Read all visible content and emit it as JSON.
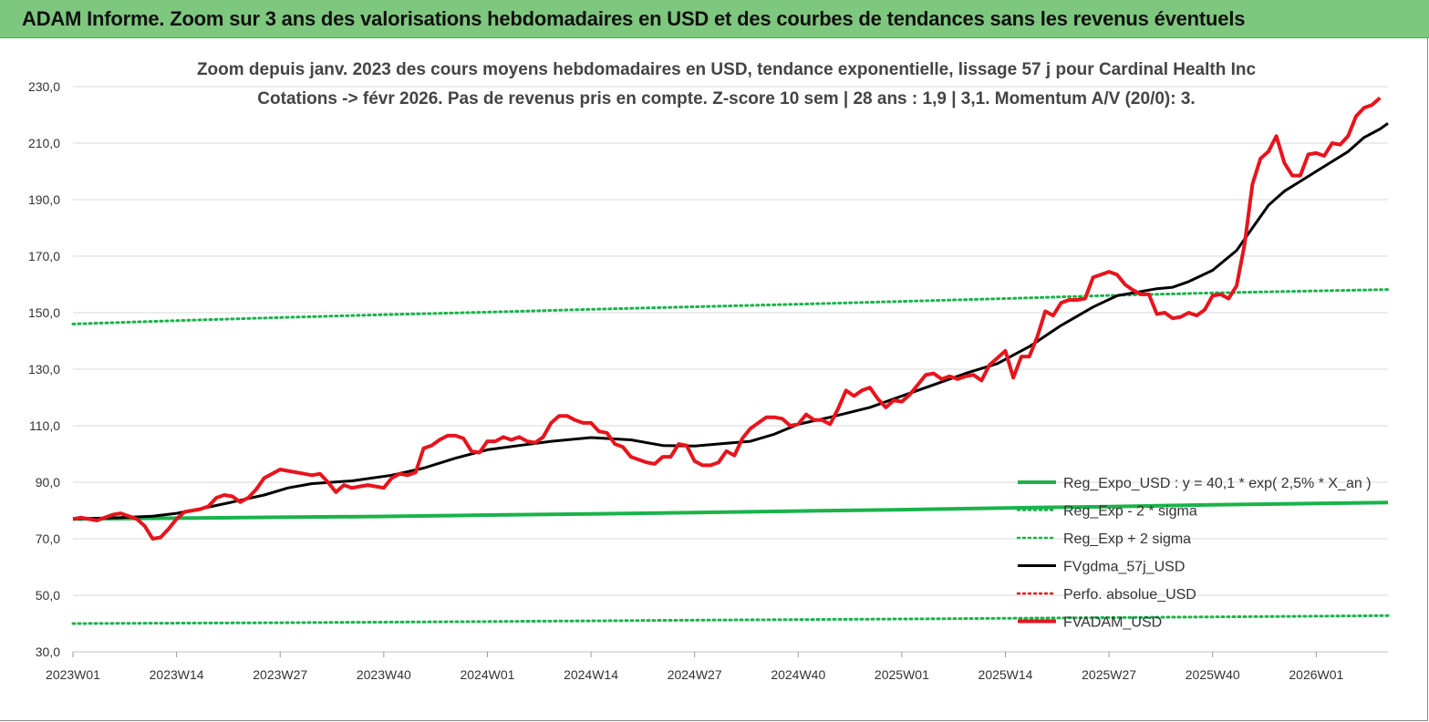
{
  "banner": {
    "title": "ADAM Informe. Zoom sur 3 ans des valorisations hebdomadaires en USD et des courbes de tendances sans les revenus éventuels"
  },
  "colors": {
    "banner": "#7ec77e",
    "price": "#e8141c",
    "smooth": "#000000",
    "regression": "#19b34a",
    "band": "#19b34a",
    "grid": "#d9d9d9"
  },
  "chart_data": {
    "type": "line",
    "title": "Zoom depuis janv. 2023 des cours moyens hebdomadaires en USD, tendance exponentielle, lissage 57 j pour Cardinal Health Inc",
    "subtitle": "Cotations -> févr 2026. Pas de revenus pris en compte. Z-score 10 sem | 28 ans : 1,9 | 3,1. Momentum A/V (20/0): 3.",
    "xlabel": "",
    "ylabel": "",
    "ylim": [
      30,
      230
    ],
    "y_ticks": [
      "30,0",
      "50,0",
      "70,0",
      "90,0",
      "110,0",
      "130,0",
      "150,0",
      "170,0",
      "190,0",
      "210,0",
      "230,0"
    ],
    "x_ticks": [
      "2023W01",
      "2023W14",
      "2023W27",
      "2023W40",
      "2024W01",
      "2024W14",
      "2024W27",
      "2024W40",
      "2025W01",
      "2025W14",
      "2025W27",
      "2025W40",
      "2026W01"
    ],
    "grid": "horizontal",
    "legend_position": "bottom-right",
    "legend": [
      "Reg_Expo_USD : y = 40,1 * exp( 2,5% *  X_an )",
      "Reg_Exp - 2 * sigma",
      "Reg_Exp + 2 sigma",
      "FVgdma_57j_USD",
      "Perfo. absolue_USD",
      "FVADAM_USD"
    ],
    "series": [
      {
        "name": "Reg_Expo_USD : y = 40,1 * exp( 2,5% *  X_an )",
        "style": "solid-thick",
        "color": "#19b34a",
        "points": [
          [
            0,
            77.0
          ],
          [
            13,
            77.3
          ],
          [
            26,
            77.6
          ],
          [
            39,
            77.9
          ],
          [
            52,
            78.4
          ],
          [
            65,
            78.8
          ],
          [
            78,
            79.3
          ],
          [
            91,
            79.8
          ],
          [
            104,
            80.3
          ],
          [
            117,
            80.9
          ],
          [
            130,
            81.4
          ],
          [
            143,
            82.0
          ],
          [
            156,
            82.5
          ],
          [
            165,
            82.8
          ]
        ]
      },
      {
        "name": "Reg_Exp - 2 * sigma",
        "style": "dotted",
        "color": "#19b34a",
        "points": [
          [
            0,
            40.0
          ],
          [
            26,
            40.3
          ],
          [
            52,
            40.7
          ],
          [
            78,
            41.2
          ],
          [
            104,
            41.6
          ],
          [
            130,
            42.1
          ],
          [
            156,
            42.6
          ],
          [
            165,
            42.8
          ]
        ]
      },
      {
        "name": "Reg_Exp + 2 sigma",
        "style": "dotted",
        "color": "#19b34a",
        "points": [
          [
            0,
            146.0
          ],
          [
            13,
            147.2
          ],
          [
            26,
            148.3
          ],
          [
            39,
            149.3
          ],
          [
            52,
            150.2
          ],
          [
            65,
            151.2
          ],
          [
            78,
            152.1
          ],
          [
            91,
            153.0
          ],
          [
            104,
            154.0
          ],
          [
            117,
            155.0
          ],
          [
            130,
            156.1
          ],
          [
            143,
            157.0
          ],
          [
            156,
            157.7
          ],
          [
            165,
            158.2
          ]
        ]
      },
      {
        "name": "FVgdma_57j_USD",
        "style": "solid",
        "color": "#000000",
        "points": [
          [
            0,
            77.0
          ],
          [
            6,
            77.5
          ],
          [
            10,
            78.0
          ],
          [
            13,
            79.0
          ],
          [
            16,
            80.6
          ],
          [
            20,
            83.0
          ],
          [
            24,
            85.5
          ],
          [
            27,
            88.0
          ],
          [
            30,
            89.5
          ],
          [
            35,
            90.5
          ],
          [
            40,
            92.5
          ],
          [
            44,
            95.0
          ],
          [
            48,
            98.5
          ],
          [
            52,
            101.5
          ],
          [
            56,
            103.0
          ],
          [
            60,
            104.5
          ],
          [
            65,
            105.8
          ],
          [
            70,
            105.0
          ],
          [
            74,
            103.0
          ],
          [
            78,
            102.8
          ],
          [
            82,
            103.8
          ],
          [
            85,
            104.5
          ],
          [
            88,
            107.0
          ],
          [
            91,
            110.5
          ],
          [
            95,
            113.0
          ],
          [
            100,
            116.5
          ],
          [
            104,
            120.5
          ],
          [
            108,
            124.5
          ],
          [
            112,
            128.5
          ],
          [
            116,
            132.0
          ],
          [
            120,
            138.0
          ],
          [
            124,
            145.5
          ],
          [
            128,
            152.0
          ],
          [
            131,
            156.0
          ],
          [
            133,
            157.0
          ],
          [
            136,
            158.5
          ],
          [
            138,
            159.0
          ],
          [
            140,
            161.0
          ],
          [
            143,
            165.0
          ],
          [
            146,
            172.0
          ],
          [
            148,
            180.0
          ],
          [
            150,
            188.0
          ],
          [
            152,
            193.0
          ],
          [
            154,
            196.5
          ],
          [
            156,
            200.0
          ],
          [
            158,
            203.5
          ],
          [
            160,
            207.0
          ],
          [
            162,
            212.0
          ],
          [
            164,
            215.0
          ],
          [
            165,
            217.0
          ]
        ]
      },
      {
        "name": "Perfo. absolue_USD",
        "style": "dotted",
        "color": "#e8141c",
        "points": []
      },
      {
        "name": "FVADAM_USD",
        "style": "solid-thick",
        "color": "#e8141c",
        "points": [
          [
            0,
            77.0
          ],
          [
            1,
            77.5
          ],
          [
            3,
            76.5
          ],
          [
            5,
            78.5
          ],
          [
            6,
            79.0
          ],
          [
            8,
            77.0
          ],
          [
            9,
            74.5
          ],
          [
            10,
            70.0
          ],
          [
            11,
            70.5
          ],
          [
            12,
            73.5
          ],
          [
            13,
            77.0
          ],
          [
            14,
            79.5
          ],
          [
            15,
            80.0
          ],
          [
            16,
            80.5
          ],
          [
            17,
            81.5
          ],
          [
            18,
            84.5
          ],
          [
            19,
            85.5
          ],
          [
            20,
            85.0
          ],
          [
            21,
            83.0
          ],
          [
            22,
            84.5
          ],
          [
            23,
            87.5
          ],
          [
            24,
            91.5
          ],
          [
            25,
            93.0
          ],
          [
            26,
            94.5
          ],
          [
            27,
            94.0
          ],
          [
            28,
            93.5
          ],
          [
            29,
            93.0
          ],
          [
            30,
            92.5
          ],
          [
            31,
            93.0
          ],
          [
            32,
            90.0
          ],
          [
            33,
            86.5
          ],
          [
            34,
            89.0
          ],
          [
            35,
            88.0
          ],
          [
            36,
            88.5
          ],
          [
            37,
            89.0
          ],
          [
            38,
            88.5
          ],
          [
            39,
            88.0
          ],
          [
            40,
            91.5
          ],
          [
            41,
            93.0
          ],
          [
            42,
            92.5
          ],
          [
            43,
            93.5
          ],
          [
            44,
            102.0
          ],
          [
            45,
            103.0
          ],
          [
            46,
            105.0
          ],
          [
            47,
            106.5
          ],
          [
            48,
            106.5
          ],
          [
            49,
            105.5
          ],
          [
            50,
            101.0
          ],
          [
            51,
            100.5
          ],
          [
            52,
            104.5
          ],
          [
            53,
            104.5
          ],
          [
            54,
            106.0
          ],
          [
            55,
            105.0
          ],
          [
            56,
            106.0
          ],
          [
            57,
            104.5
          ],
          [
            58,
            104.0
          ],
          [
            59,
            106.0
          ],
          [
            60,
            111.0
          ],
          [
            61,
            113.5
          ],
          [
            62,
            113.5
          ],
          [
            63,
            112.0
          ],
          [
            64,
            111.0
          ],
          [
            65,
            111.0
          ],
          [
            66,
            108.0
          ],
          [
            67,
            107.5
          ],
          [
            68,
            103.5
          ],
          [
            69,
            102.5
          ],
          [
            70,
            99.0
          ],
          [
            71,
            98.0
          ],
          [
            72,
            97.0
          ],
          [
            73,
            96.5
          ],
          [
            74,
            99.0
          ],
          [
            75,
            99.0
          ],
          [
            76,
            103.5
          ],
          [
            77,
            103.0
          ],
          [
            78,
            97.5
          ],
          [
            79,
            96.0
          ],
          [
            80,
            96.0
          ],
          [
            81,
            97.0
          ],
          [
            82,
            101.0
          ],
          [
            83,
            99.5
          ],
          [
            84,
            105.5
          ],
          [
            85,
            109.0
          ],
          [
            86,
            111.0
          ],
          [
            87,
            113.0
          ],
          [
            88,
            113.0
          ],
          [
            89,
            112.5
          ],
          [
            90,
            110.0
          ],
          [
            91,
            110.5
          ],
          [
            92,
            114.0
          ],
          [
            93,
            112.0
          ],
          [
            94,
            112.0
          ],
          [
            95,
            110.5
          ],
          [
            96,
            116.0
          ],
          [
            97,
            122.5
          ],
          [
            98,
            120.5
          ],
          [
            99,
            122.5
          ],
          [
            100,
            123.5
          ],
          [
            101,
            119.5
          ],
          [
            102,
            116.5
          ],
          [
            103,
            119.0
          ],
          [
            104,
            118.5
          ],
          [
            105,
            121.0
          ],
          [
            106,
            124.5
          ],
          [
            107,
            128.0
          ],
          [
            108,
            128.5
          ],
          [
            109,
            126.5
          ],
          [
            110,
            127.5
          ],
          [
            111,
            126.5
          ],
          [
            112,
            127.5
          ],
          [
            113,
            128.0
          ],
          [
            114,
            126.0
          ],
          [
            115,
            131.5
          ],
          [
            116,
            134.0
          ],
          [
            117,
            136.5
          ],
          [
            118,
            127.0
          ],
          [
            119,
            134.5
          ],
          [
            120,
            134.5
          ],
          [
            121,
            141.5
          ],
          [
            122,
            150.5
          ],
          [
            123,
            149.0
          ],
          [
            124,
            153.5
          ],
          [
            125,
            154.5
          ],
          [
            126,
            154.5
          ],
          [
            127,
            155.0
          ],
          [
            128,
            162.5
          ],
          [
            129,
            163.5
          ],
          [
            130,
            164.5
          ],
          [
            131,
            163.5
          ],
          [
            132,
            160.0
          ],
          [
            133,
            158.0
          ],
          [
            134,
            156.5
          ],
          [
            135,
            156.5
          ],
          [
            136,
            149.5
          ],
          [
            137,
            150.0
          ],
          [
            138,
            148.0
          ],
          [
            139,
            148.5
          ],
          [
            140,
            150.0
          ],
          [
            141,
            149.0
          ],
          [
            142,
            151.0
          ],
          [
            143,
            156.0
          ],
          [
            144,
            156.5
          ],
          [
            145,
            155.0
          ],
          [
            146,
            159.5
          ],
          [
            147,
            174.0
          ],
          [
            148,
            195.5
          ],
          [
            149,
            204.5
          ],
          [
            150,
            207.0
          ],
          [
            151,
            212.5
          ],
          [
            152,
            203.0
          ],
          [
            153,
            198.5
          ],
          [
            154,
            198.5
          ],
          [
            155,
            206.0
          ],
          [
            156,
            206.5
          ],
          [
            157,
            205.5
          ],
          [
            158,
            210.0
          ],
          [
            159,
            209.5
          ],
          [
            160,
            212.5
          ],
          [
            161,
            219.5
          ],
          [
            162,
            222.5
          ],
          [
            163,
            223.5
          ],
          [
            164,
            226.0
          ]
        ]
      }
    ]
  }
}
